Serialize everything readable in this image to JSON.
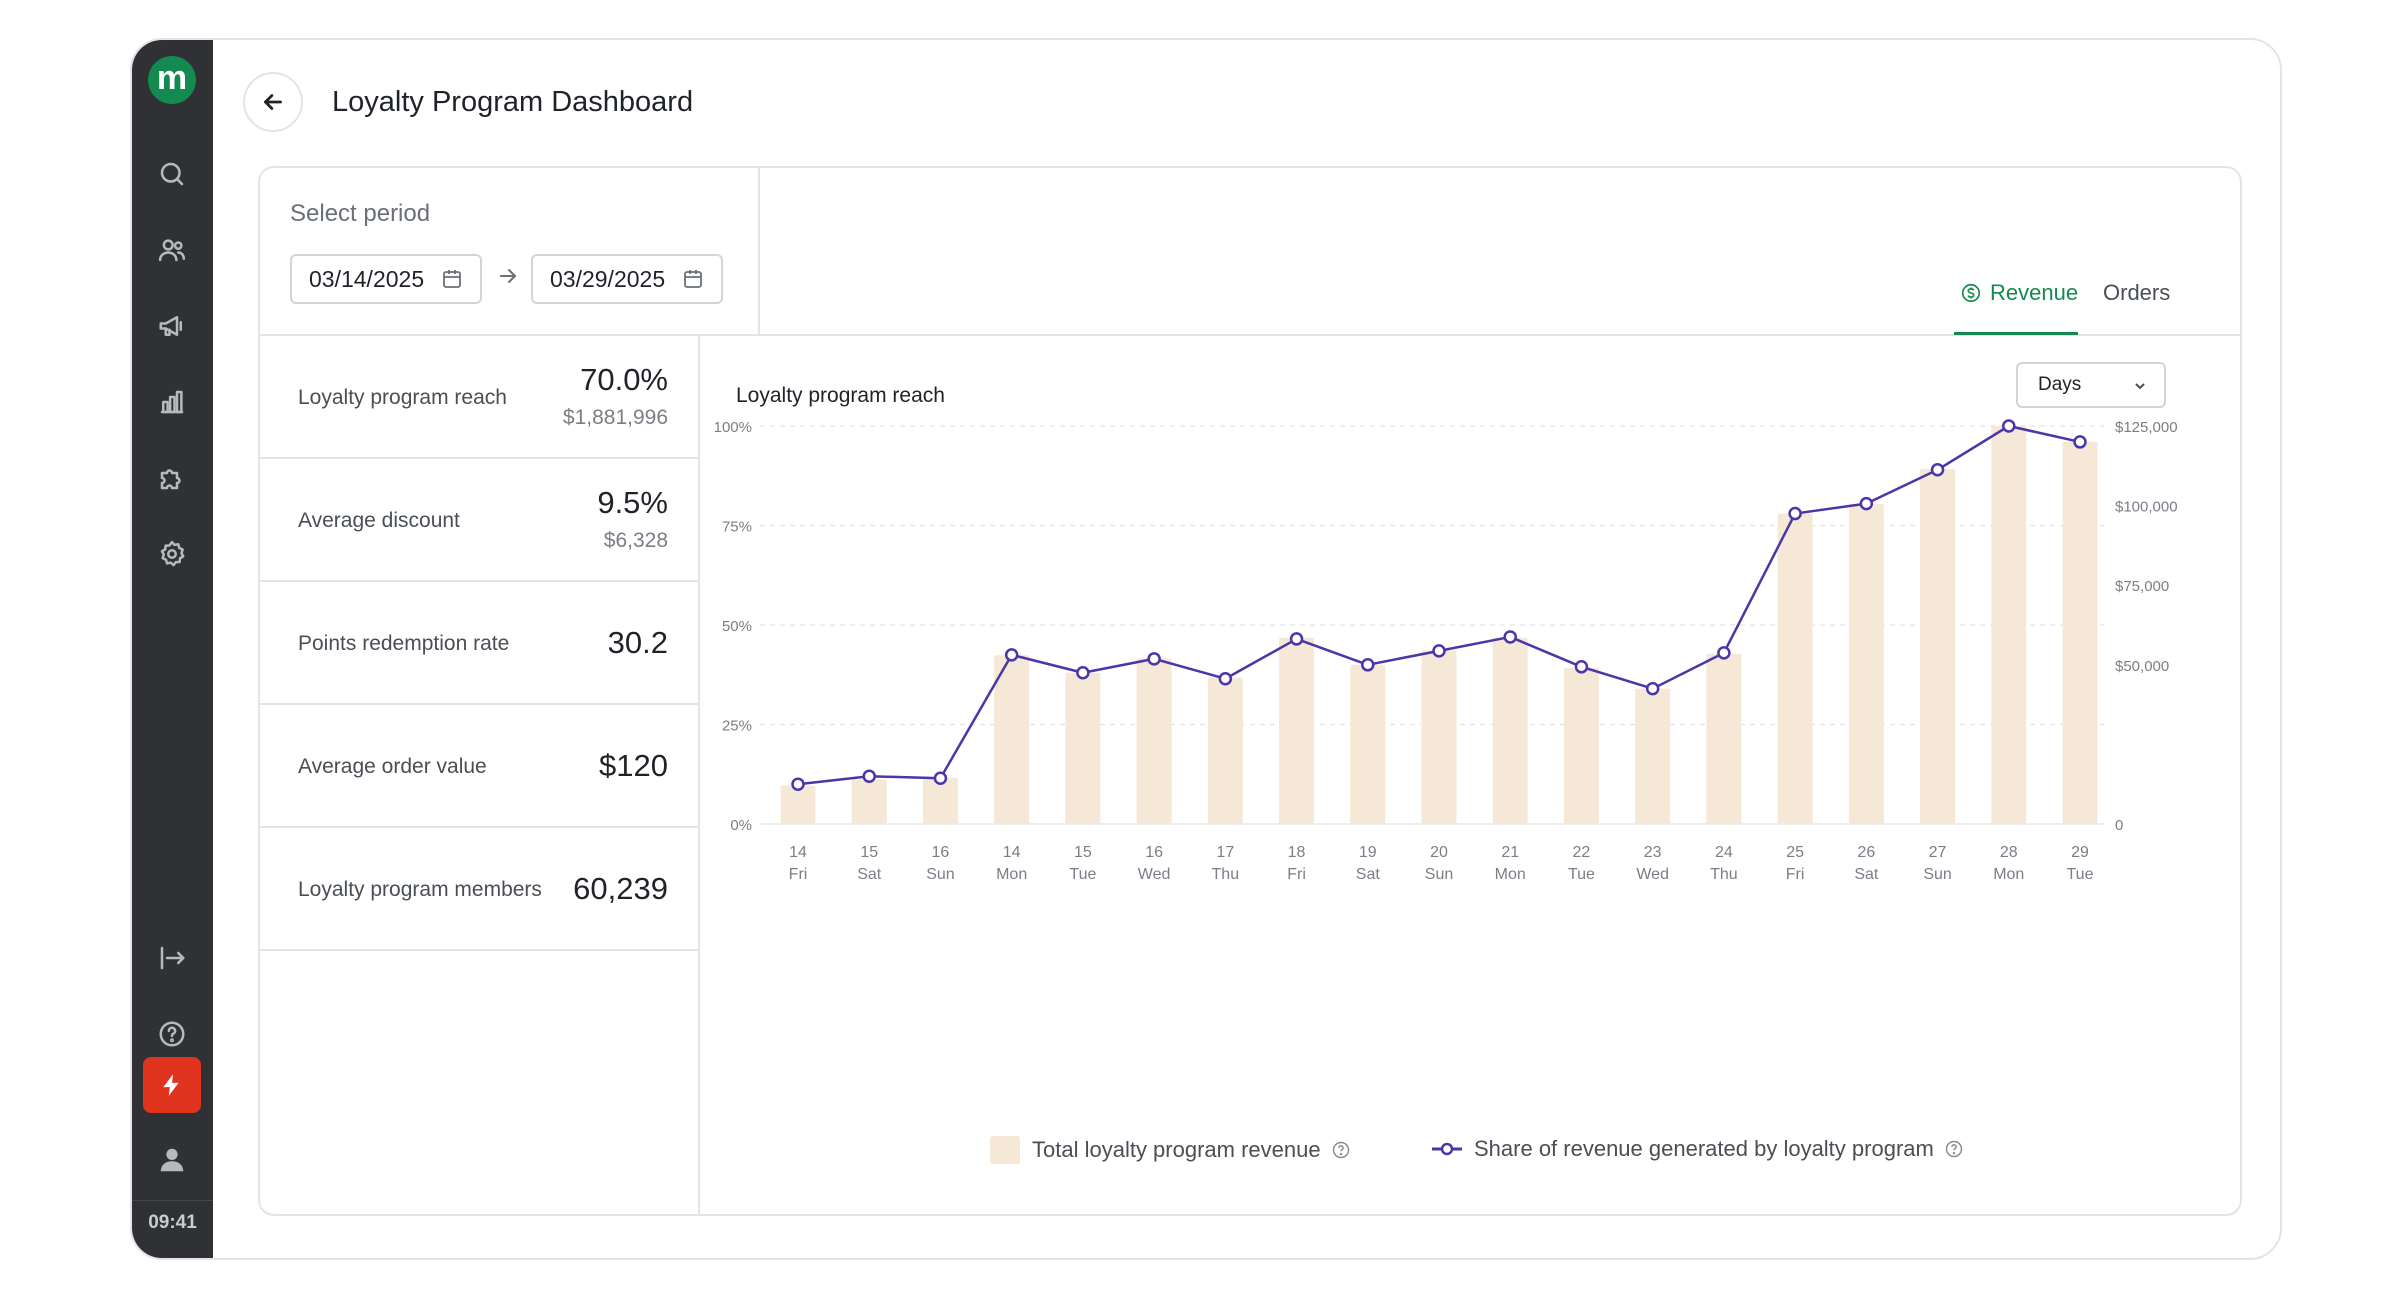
{
  "app": {
    "logo_letter": "m",
    "time": "09:41"
  },
  "header": {
    "title": "Loyalty Program Dashboard"
  },
  "period": {
    "label": "Select period",
    "start": "03/14/2025",
    "end": "03/29/2025"
  },
  "tabs": {
    "revenue": "Revenue",
    "orders": "Orders",
    "active": "revenue"
  },
  "metrics": [
    {
      "label": "Loyalty program reach",
      "value": "70.0%",
      "sub": "$1,881,996"
    },
    {
      "label": "Average discount",
      "value": "9.5%",
      "sub": "$6,328"
    },
    {
      "label": "Points redemption rate",
      "value": "30.2",
      "sub": ""
    },
    {
      "label": "Average order value",
      "value": "$120",
      "sub": ""
    },
    {
      "label": "Loyalty program members",
      "value": "60,239",
      "sub": ""
    }
  ],
  "chart": {
    "title": "Loyalty program reach",
    "granularity": "Days"
  },
  "colors": {
    "accent": "#138a4f",
    "bar": "#f5e8d6",
    "line": "#4b35a8",
    "alert": "#e0341e"
  },
  "icons": [
    "search-icon",
    "users-icon",
    "megaphone-icon",
    "bar-chart-icon",
    "puzzle-icon",
    "settings-icon",
    "logout-icon",
    "help-icon",
    "bolt-icon",
    "user-icon"
  ],
  "chart_data": {
    "type": "bar",
    "title": "Loyalty program reach",
    "categories": [
      [
        "14",
        "Fri"
      ],
      [
        "15",
        "Sat"
      ],
      [
        "16",
        "Sun"
      ],
      [
        "14",
        "Mon"
      ],
      [
        "15",
        "Tue"
      ],
      [
        "16",
        "Wed"
      ],
      [
        "17",
        "Thu"
      ],
      [
        "18",
        "Fri"
      ],
      [
        "19",
        "Sat"
      ],
      [
        "20",
        "Sun"
      ],
      [
        "21",
        "Mon"
      ],
      [
        "22",
        "Tue"
      ],
      [
        "23",
        "Wed"
      ],
      [
        "24",
        "Thu"
      ],
      [
        "25",
        "Fri"
      ],
      [
        "26",
        "Sat"
      ],
      [
        "27",
        "Sun"
      ],
      [
        "28",
        "Mon"
      ],
      [
        "29",
        "Tue"
      ]
    ],
    "y_left": {
      "ticks": [
        "0%",
        "25%",
        "50%",
        "75%",
        "100%"
      ],
      "lim": [
        0,
        100
      ]
    },
    "y_right": {
      "ticks": [
        "0",
        "$50,000",
        "$75,000",
        "$100,000",
        "$125,000"
      ],
      "lim": [
        0,
        125000
      ]
    },
    "grid": true,
    "legend_position": "bottom",
    "series": [
      {
        "name": "Total loyalty program revenue",
        "kind": "bar",
        "axis": "right",
        "values": [
          12000,
          14000,
          14500,
          53000,
          47500,
          52000,
          46000,
          58500,
          50000,
          54500,
          58500,
          49000,
          42500,
          53500,
          97500,
          100500,
          111500,
          125000,
          120000
        ]
      },
      {
        "name": "Share of revenue generated by loyalty program",
        "kind": "line",
        "axis": "left",
        "values": [
          10,
          12,
          11.5,
          42.5,
          38,
          41.5,
          36.5,
          46.5,
          40,
          43.5,
          47,
          39.5,
          34,
          43,
          78,
          80.5,
          89,
          100,
          96
        ]
      }
    ]
  }
}
